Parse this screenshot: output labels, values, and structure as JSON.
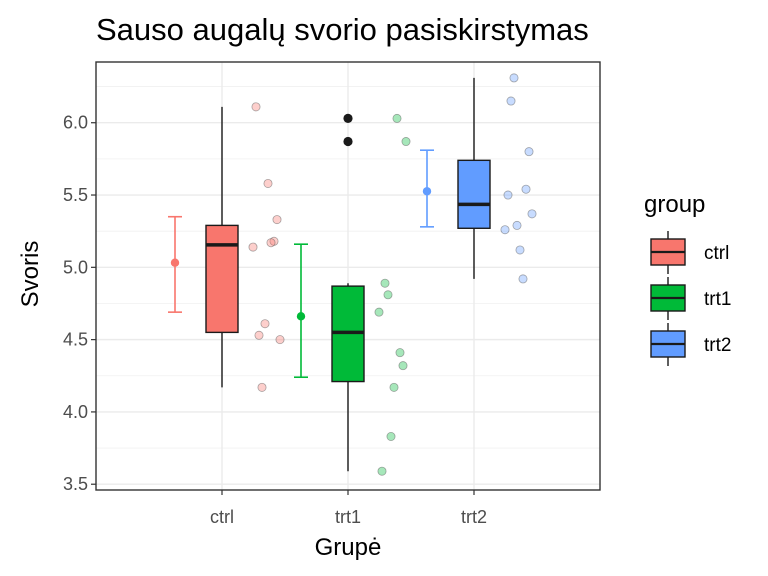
{
  "chart_data": {
    "type": "boxplot",
    "title": "Sauso augalų svorio pasiskirstymas",
    "xlabel": "Grupė",
    "ylabel": "Svoris",
    "categories": [
      "ctrl",
      "trt1",
      "trt2"
    ],
    "ylim": [
      3.46,
      6.42
    ],
    "yticks": [
      3.5,
      4.0,
      4.5,
      5.0,
      5.5,
      6.0
    ],
    "ytick_labels": [
      "3.5",
      "4.0",
      "4.5",
      "5.0",
      "5.5",
      "6.0"
    ],
    "grid": true,
    "legend": {
      "title": "group",
      "position": "right",
      "entries": [
        "ctrl",
        "trt1",
        "trt2"
      ]
    },
    "colors": {
      "ctrl": "#f8766d",
      "trt1": "#00ba38",
      "trt2": "#619cff"
    },
    "series": [
      {
        "name": "ctrl",
        "box": {
          "min": 4.17,
          "q1": 4.55,
          "median": 5.155,
          "q3": 5.29,
          "max": 6.11
        },
        "outliers": [],
        "mean": 5.032,
        "mean_ci": [
          4.69,
          5.35
        ],
        "points": [
          4.17,
          5.58,
          5.18,
          6.11,
          4.5,
          4.61,
          5.17,
          4.53,
          5.33,
          5.14
        ]
      },
      {
        "name": "trt1",
        "box": {
          "min": 3.59,
          "q1": 4.21,
          "median": 4.55,
          "q3": 4.87,
          "max": 4.89
        },
        "outliers": [
          5.87,
          6.03
        ],
        "mean": 4.661,
        "mean_ci": [
          4.24,
          5.16
        ],
        "points": [
          4.81,
          4.17,
          4.41,
          3.59,
          5.87,
          3.83,
          6.03,
          4.89,
          4.32,
          4.69
        ]
      },
      {
        "name": "trt2",
        "box": {
          "min": 4.92,
          "q1": 5.27,
          "median": 5.435,
          "q3": 5.74,
          "max": 6.31
        },
        "outliers": [],
        "mean": 5.526,
        "mean_ci": [
          5.28,
          5.81
        ],
        "points": [
          6.31,
          5.12,
          5.54,
          5.5,
          5.37,
          5.29,
          4.92,
          6.15,
          5.8,
          5.26
        ]
      }
    ]
  }
}
